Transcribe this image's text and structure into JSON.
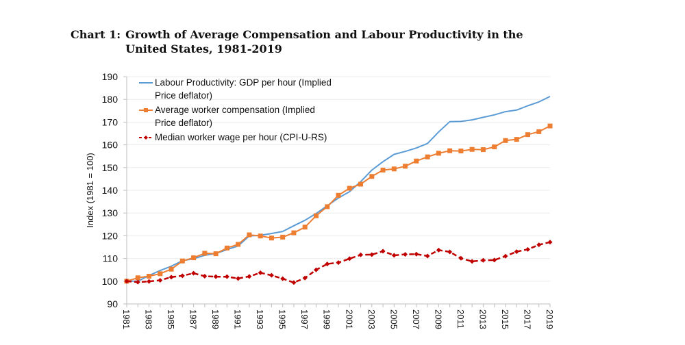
{
  "title": {
    "label": "Chart 1:",
    "text": "Growth of Average Compensation and Labour Productivity in the United States, 1981-2019"
  },
  "chart_data": {
    "type": "line",
    "title": "Growth of Average Compensation and Labour Productivity in the United States, 1981-2019",
    "xlabel": "",
    "ylabel": "Index (1981 = 100)",
    "ylim": [
      90,
      190
    ],
    "yticks": [
      90,
      100,
      110,
      120,
      130,
      140,
      150,
      160,
      170,
      180,
      190
    ],
    "grid": true,
    "legend_position": "top-left",
    "x": [
      1981,
      1982,
      1983,
      1984,
      1985,
      1986,
      1987,
      1988,
      1989,
      1990,
      1991,
      1992,
      1993,
      1994,
      1995,
      1996,
      1997,
      1998,
      1999,
      2000,
      2001,
      2002,
      2003,
      2004,
      2005,
      2006,
      2007,
      2008,
      2009,
      2010,
      2011,
      2012,
      2013,
      2014,
      2015,
      2016,
      2017,
      2018,
      2019
    ],
    "xtick_labels": [
      "1981",
      "1983",
      "1985",
      "1987",
      "1989",
      "1991",
      "1993",
      "1995",
      "1997",
      "1999",
      "2001",
      "2003",
      "2005",
      "2007",
      "2009",
      "2011",
      "2013",
      "2015",
      "2017",
      "2019"
    ],
    "series": [
      {
        "name": "Labour Productivity: GDP per hour (Implied Price deflator)",
        "legend_lines": [
          "Labour Productivity: GDP per hour (Implied",
          "Price deflator)"
        ],
        "color": "#5b9bd5",
        "style": "solid",
        "marker": "none",
        "values": [
          100,
          100.0,
          102.5,
          104.7,
          106.6,
          109.0,
          109.9,
          111.4,
          112.2,
          113.9,
          115.5,
          119.9,
          120.2,
          121.0,
          121.9,
          124.4,
          126.8,
          129.8,
          133.2,
          136.6,
          139.4,
          143.8,
          148.9,
          152.6,
          155.8,
          157.1,
          158.6,
          160.6,
          165.7,
          170.2,
          170.3,
          171.0,
          172.1,
          173.2,
          174.6,
          175.3,
          177.2,
          178.9,
          181.3
        ]
      },
      {
        "name": "Average worker compensation (Implied Price deflator)",
        "legend_lines": [
          "Average worker compensation (Implied",
          "Price deflator)"
        ],
        "color": "#ed7d31",
        "style": "solid",
        "marker": "square",
        "values": [
          100,
          101.5,
          102.2,
          103.3,
          105.3,
          108.9,
          110.3,
          112.3,
          112.1,
          114.6,
          116.2,
          120.4,
          119.9,
          119.0,
          119.4,
          121.3,
          123.8,
          128.8,
          132.8,
          137.8,
          140.9,
          142.7,
          146.1,
          148.9,
          149.4,
          150.6,
          152.9,
          154.7,
          156.3,
          157.4,
          157.3,
          158.0,
          157.9,
          159.1,
          161.9,
          162.4,
          164.5,
          165.8,
          168.3
        ]
      },
      {
        "name": "Median worker wage per hour (CPI-U-RS)",
        "legend_lines": [
          "Median worker wage per hour (CPI-U-RS)"
        ],
        "color": "#c00000",
        "style": "dashed",
        "marker": "diamond",
        "values": [
          100,
          99.6,
          99.9,
          100.4,
          101.8,
          102.4,
          103.5,
          102.2,
          102.0,
          102.0,
          101.2,
          102.1,
          103.7,
          102.6,
          101.1,
          99.4,
          101.4,
          105.0,
          107.6,
          108.2,
          109.9,
          111.6,
          111.7,
          113.2,
          111.4,
          111.8,
          111.9,
          111.1,
          113.7,
          112.9,
          110.1,
          108.7,
          109.2,
          109.3,
          111.0,
          113.0,
          114.0,
          116.0,
          117.2
        ]
      }
    ]
  }
}
